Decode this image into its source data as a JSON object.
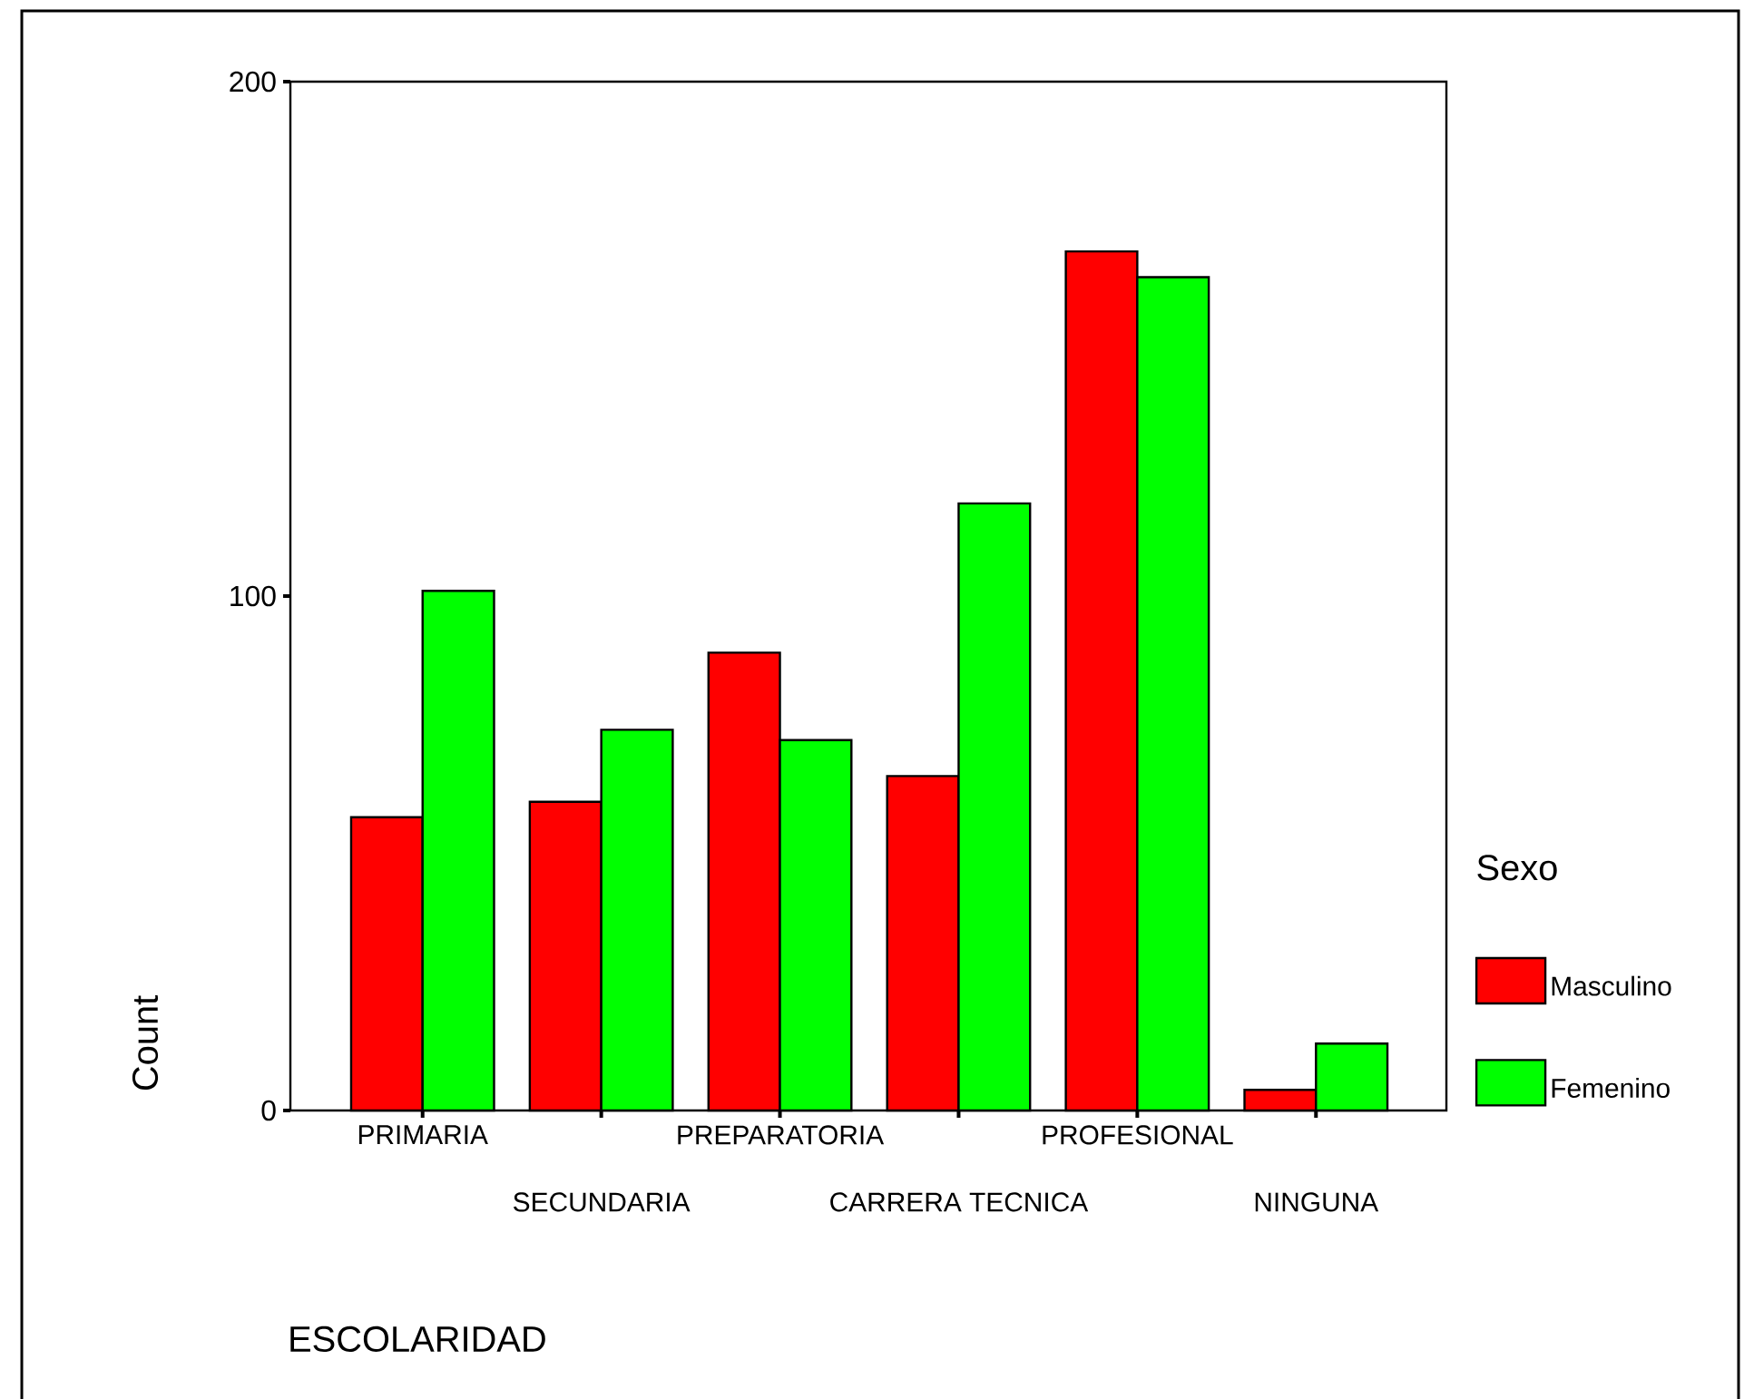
{
  "chart_data": {
    "type": "bar",
    "xlabel": "ESCOLARIDAD",
    "ylabel": "Count",
    "legend_title": "Sexo",
    "categories": [
      "PRIMARIA",
      "SECUNDARIA",
      "PREPARATORIA",
      "CARRERA TECNICA",
      "PROFESIONAL",
      "NINGUNA"
    ],
    "series": [
      {
        "name": "Masculino",
        "color": "#ff0000",
        "values": [
          57,
          60,
          89,
          65,
          167,
          4
        ]
      },
      {
        "name": "Femenino",
        "color": "#00ff00",
        "values": [
          101,
          74,
          72,
          118,
          162,
          13
        ]
      }
    ],
    "ylim": [
      0,
      200
    ],
    "yticks": [
      0,
      100,
      200
    ],
    "grid": false,
    "legend": "right"
  }
}
